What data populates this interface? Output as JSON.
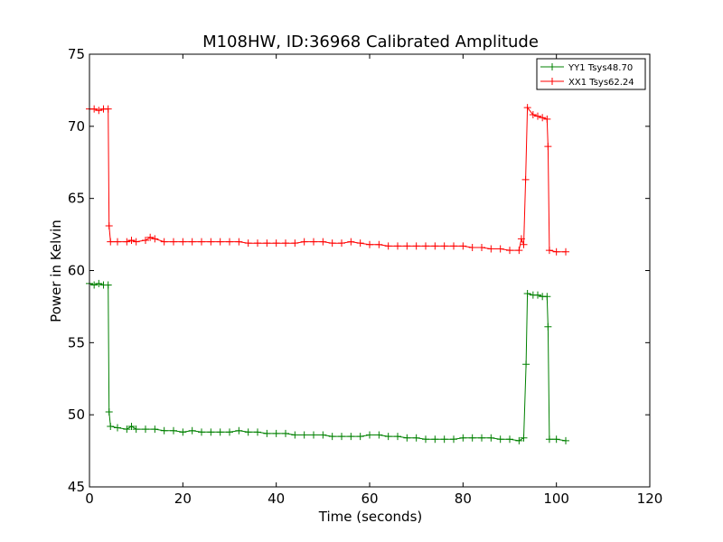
{
  "chart_data": {
    "type": "line",
    "title": "M108HW, ID:36968 Calibrated Amplitude",
    "xlabel": "Time (seconds)",
    "ylabel": "Power in Kelvin",
    "xlim": [
      0,
      120
    ],
    "ylim": [
      45,
      75
    ],
    "x_ticks": [
      "0",
      "20",
      "40",
      "60",
      "80",
      "100",
      "120"
    ],
    "y_ticks": [
      "45",
      "50",
      "55",
      "60",
      "65",
      "70",
      "75"
    ],
    "grid": false,
    "legend_position": "top-right",
    "marker": "plus",
    "series": [
      {
        "name": "YY1 Tsys48.70",
        "color": "#008000",
        "points": [
          [
            0,
            59.1
          ],
          [
            1,
            59.0
          ],
          [
            2,
            59.1
          ],
          [
            3,
            59.0
          ],
          [
            4,
            59.0
          ],
          [
            4.2,
            50.2
          ],
          [
            4.5,
            49.2
          ],
          [
            6,
            49.1
          ],
          [
            8,
            49.0
          ],
          [
            9,
            49.2
          ],
          [
            10,
            49.0
          ],
          [
            12,
            49.0
          ],
          [
            14,
            49.0
          ],
          [
            16,
            48.9
          ],
          [
            18,
            48.9
          ],
          [
            20,
            48.8
          ],
          [
            22,
            48.9
          ],
          [
            24,
            48.8
          ],
          [
            26,
            48.8
          ],
          [
            28,
            48.8
          ],
          [
            30,
            48.8
          ],
          [
            32,
            48.9
          ],
          [
            34,
            48.8
          ],
          [
            36,
            48.8
          ],
          [
            38,
            48.7
          ],
          [
            40,
            48.7
          ],
          [
            42,
            48.7
          ],
          [
            44,
            48.6
          ],
          [
            46,
            48.6
          ],
          [
            48,
            48.6
          ],
          [
            50,
            48.6
          ],
          [
            52,
            48.5
          ],
          [
            54,
            48.5
          ],
          [
            56,
            48.5
          ],
          [
            58,
            48.5
          ],
          [
            60,
            48.6
          ],
          [
            62,
            48.6
          ],
          [
            64,
            48.5
          ],
          [
            66,
            48.5
          ],
          [
            68,
            48.4
          ],
          [
            70,
            48.4
          ],
          [
            72,
            48.3
          ],
          [
            74,
            48.3
          ],
          [
            76,
            48.3
          ],
          [
            78,
            48.3
          ],
          [
            80,
            48.4
          ],
          [
            82,
            48.4
          ],
          [
            84,
            48.4
          ],
          [
            86,
            48.4
          ],
          [
            88,
            48.3
          ],
          [
            90,
            48.3
          ],
          [
            92,
            48.2
          ],
          [
            93,
            48.4
          ],
          [
            93.5,
            53.5
          ],
          [
            93.8,
            58.4
          ],
          [
            95,
            58.3
          ],
          [
            96,
            58.3
          ],
          [
            97,
            58.2
          ],
          [
            98,
            58.2
          ],
          [
            98.2,
            56.1
          ],
          [
            98.5,
            48.3
          ],
          [
            100,
            48.3
          ],
          [
            102,
            48.2
          ]
        ]
      },
      {
        "name": "XX1 Tsys62.24",
        "color": "#ff0000",
        "points": [
          [
            0,
            71.2
          ],
          [
            1,
            71.2
          ],
          [
            2,
            71.1
          ],
          [
            3,
            71.2
          ],
          [
            4,
            71.2
          ],
          [
            4.2,
            63.1
          ],
          [
            4.5,
            62.0
          ],
          [
            6,
            62.0
          ],
          [
            8,
            62.0
          ],
          [
            9,
            62.1
          ],
          [
            10,
            62.0
          ],
          [
            12,
            62.1
          ],
          [
            13,
            62.3
          ],
          [
            14,
            62.2
          ],
          [
            16,
            62.0
          ],
          [
            18,
            62.0
          ],
          [
            20,
            62.0
          ],
          [
            22,
            62.0
          ],
          [
            24,
            62.0
          ],
          [
            26,
            62.0
          ],
          [
            28,
            62.0
          ],
          [
            30,
            62.0
          ],
          [
            32,
            62.0
          ],
          [
            34,
            61.9
          ],
          [
            36,
            61.9
          ],
          [
            38,
            61.9
          ],
          [
            40,
            61.9
          ],
          [
            42,
            61.9
          ],
          [
            44,
            61.9
          ],
          [
            46,
            62.0
          ],
          [
            48,
            62.0
          ],
          [
            50,
            62.0
          ],
          [
            52,
            61.9
          ],
          [
            54,
            61.9
          ],
          [
            56,
            62.0
          ],
          [
            58,
            61.9
          ],
          [
            60,
            61.8
          ],
          [
            62,
            61.8
          ],
          [
            64,
            61.7
          ],
          [
            66,
            61.7
          ],
          [
            68,
            61.7
          ],
          [
            70,
            61.7
          ],
          [
            72,
            61.7
          ],
          [
            74,
            61.7
          ],
          [
            76,
            61.7
          ],
          [
            78,
            61.7
          ],
          [
            80,
            61.7
          ],
          [
            82,
            61.6
          ],
          [
            84,
            61.6
          ],
          [
            86,
            61.5
          ],
          [
            88,
            61.5
          ],
          [
            90,
            61.4
          ],
          [
            92,
            61.4
          ],
          [
            92.5,
            62.2
          ],
          [
            93,
            61.8
          ],
          [
            93.4,
            66.3
          ],
          [
            93.8,
            71.3
          ],
          [
            95,
            70.8
          ],
          [
            96,
            70.7
          ],
          [
            97,
            70.6
          ],
          [
            98,
            70.5
          ],
          [
            98.2,
            68.6
          ],
          [
            98.5,
            61.4
          ],
          [
            100,
            61.3
          ],
          [
            102,
            61.3
          ]
        ]
      }
    ]
  }
}
